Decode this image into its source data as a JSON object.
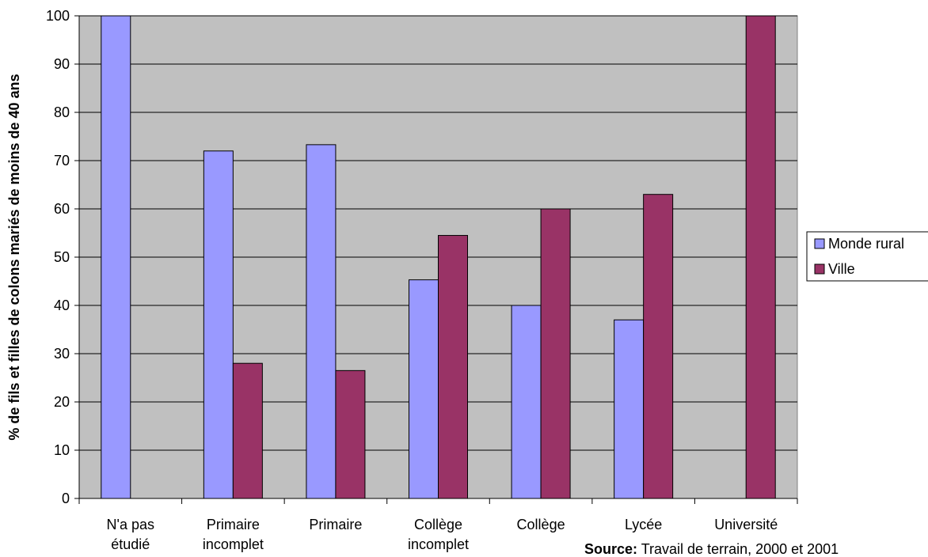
{
  "chart_data": {
    "type": "bar",
    "categories": [
      [
        "N'a pas",
        "étudié"
      ],
      [
        "Primaire",
        "incomplet"
      ],
      [
        "Primaire"
      ],
      [
        "Collège",
        "incomplet"
      ],
      [
        "Collège"
      ],
      [
        "Lycée"
      ],
      [
        "Université"
      ]
    ],
    "series": [
      {
        "name": "Monde rural",
        "color": "#9999ff",
        "values": [
          100,
          72,
          73.3,
          45.3,
          40,
          37,
          0
        ]
      },
      {
        "name": "Ville",
        "color": "#993366",
        "values": [
          0,
          28,
          26.5,
          54.5,
          60,
          63,
          100
        ]
      }
    ],
    "ylabel": "% de fils et filles de colons mariés de moins de 40 ans",
    "ylim": [
      0,
      100
    ],
    "yticks": [
      0,
      10,
      20,
      30,
      40,
      50,
      60,
      70,
      80,
      90,
      100
    ],
    "grid": true,
    "plot_background": "#c0c0c0",
    "legend_position": "right",
    "source": {
      "label": "Source:",
      "text": " Travail de terrain, 2000 et 2001"
    }
  }
}
